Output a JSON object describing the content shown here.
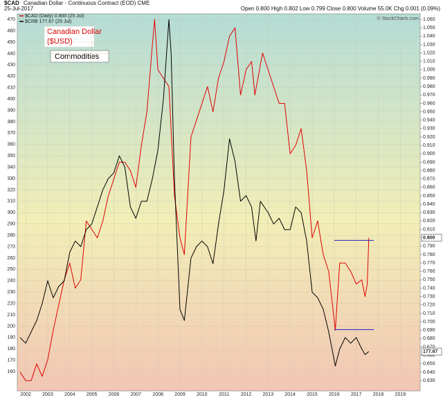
{
  "chart_data": {
    "type": "line",
    "symbol": "$CAD",
    "title": "Canadian Dollar - Continuous Contract (EOD) CME",
    "date": "25-Jul-2017",
    "quote": "Open 0.800  High 0.802  Low 0.799  Close 0.800  Volume 55.0K  Chg 0.001 (0.09%)",
    "credit": "© StockCharts.com",
    "annotations": [
      {
        "text": "Canadian Dollar\n($USD)",
        "color": "#e00000"
      },
      {
        "text": "Commodities",
        "color": "#000000"
      }
    ],
    "xlim": [
      2001.62,
      2019.9
    ],
    "xticks": [
      2002,
      2003,
      2004,
      2005,
      2006,
      2007,
      2008,
      2009,
      2010,
      2011,
      2012,
      2013,
      2014,
      2015,
      2016,
      2017,
      2018,
      2019
    ],
    "ylim": [
      143,
      475
    ],
    "yticks": [
      160,
      170,
      180,
      190,
      200,
      210,
      220,
      230,
      240,
      250,
      260,
      270,
      280,
      290,
      300,
      310,
      320,
      330,
      340,
      350,
      360,
      370,
      380,
      390,
      400,
      410,
      420,
      430,
      440,
      450,
      460,
      470
    ],
    "y2lim": [
      0.6177,
      1.0666
    ],
    "y2ticks": [
      {
        "value": 0.63,
        "label": "0.630"
      },
      {
        "value": 0.64,
        "label": "0.640"
      },
      {
        "value": 0.65,
        "label": "0.650"
      },
      {
        "value": 0.66,
        "label": "0.660"
      },
      {
        "value": 0.67,
        "label": "0.670"
      },
      {
        "value": 0.68,
        "label": "0.680"
      },
      {
        "value": 0.69,
        "label": "0.690"
      },
      {
        "value": 0.7,
        "label": "0.700"
      },
      {
        "value": 0.71,
        "label": "0.710"
      },
      {
        "value": 0.72,
        "label": "0.720"
      },
      {
        "value": 0.73,
        "label": "0.730"
      },
      {
        "value": 0.74,
        "label": "0.740"
      },
      {
        "value": 0.75,
        "label": "0.750"
      },
      {
        "value": 0.76,
        "label": "0.760"
      },
      {
        "value": 0.77,
        "label": "0.770"
      },
      {
        "value": 0.78,
        "label": "0.780"
      },
      {
        "value": 0.79,
        "label": "0.790"
      },
      {
        "value": 0.8,
        "label": "0.800"
      },
      {
        "value": 0.81,
        "label": "0.810"
      },
      {
        "value": 0.82,
        "label": "0.820"
      },
      {
        "value": 0.83,
        "label": "0.830"
      },
      {
        "value": 0.84,
        "label": "0.840"
      },
      {
        "value": 0.85,
        "label": "0.850"
      },
      {
        "value": 0.86,
        "label": "0.860"
      },
      {
        "value": 0.87,
        "label": "0.870"
      },
      {
        "value": 0.88,
        "label": "0.880"
      },
      {
        "value": 0.89,
        "label": "0.890"
      },
      {
        "value": 0.9,
        "label": "0.900"
      },
      {
        "value": 0.91,
        "label": "0.910"
      },
      {
        "value": 0.92,
        "label": "0.920"
      },
      {
        "value": 0.93,
        "label": "0.930"
      },
      {
        "value": 0.94,
        "label": "0.940"
      },
      {
        "value": 0.95,
        "label": "0.950"
      },
      {
        "value": 0.96,
        "label": "0.960"
      },
      {
        "value": 0.97,
        "label": "0.970"
      },
      {
        "value": 0.98,
        "label": "0.980"
      },
      {
        "value": 0.99,
        "label": "0.990"
      },
      {
        "value": 1.0,
        "label": "1.000"
      },
      {
        "value": 1.01,
        "label": "1.010"
      },
      {
        "value": 1.02,
        "label": "1.020"
      },
      {
        "value": 1.03,
        "label": "1.030"
      },
      {
        "value": 1.04,
        "label": "1.040"
      },
      {
        "value": 1.05,
        "label": "1.050"
      },
      {
        "value": 1.06,
        "label": "1.060"
      }
    ],
    "grid": true,
    "series": [
      {
        "name": "$CAD (Daily) 0.800 (25 Jul)",
        "color": "#e00000",
        "axis": "y2",
        "last_label": "0.800",
        "x": [
          2001.75,
          2002.0,
          2002.25,
          2002.5,
          2002.75,
          2003.0,
          2003.25,
          2003.5,
          2003.75,
          2004.0,
          2004.25,
          2004.5,
          2004.75,
          2005.0,
          2005.25,
          2005.5,
          2005.75,
          2006.0,
          2006.25,
          2006.5,
          2006.75,
          2007.0,
          2007.25,
          2007.5,
          2007.75,
          2007.85,
          2008.0,
          2008.25,
          2008.5,
          2008.75,
          2009.0,
          2009.2,
          2009.5,
          2009.75,
          2010.0,
          2010.25,
          2010.5,
          2010.75,
          2011.0,
          2011.25,
          2011.5,
          2011.75,
          2012.0,
          2012.25,
          2012.4,
          2012.75,
          2013.0,
          2013.25,
          2013.5,
          2013.75,
          2014.0,
          2014.25,
          2014.5,
          2014.75,
          2015.0,
          2015.25,
          2015.5,
          2015.75,
          2016.05,
          2016.25,
          2016.5,
          2016.75,
          2017.0,
          2017.25,
          2017.4,
          2017.5,
          2017.57
        ],
        "values": [
          0.64,
          0.63,
          0.63,
          0.65,
          0.635,
          0.655,
          0.69,
          0.72,
          0.75,
          0.77,
          0.74,
          0.75,
          0.82,
          0.81,
          0.8,
          0.82,
          0.85,
          0.87,
          0.89,
          0.89,
          0.88,
          0.86,
          0.91,
          0.95,
          1.03,
          1.06,
          1.0,
          0.99,
          0.98,
          0.85,
          0.8,
          0.78,
          0.92,
          0.94,
          0.96,
          0.98,
          0.95,
          0.99,
          1.01,
          1.04,
          1.05,
          0.97,
          1.0,
          1.01,
          0.97,
          1.02,
          1.0,
          0.98,
          0.96,
          0.96,
          0.9,
          0.91,
          0.93,
          0.88,
          0.8,
          0.82,
          0.78,
          0.76,
          0.69,
          0.77,
          0.77,
          0.76,
          0.745,
          0.75,
          0.73,
          0.745,
          0.8
        ]
      },
      {
        "name": "$CRB 177.67 (25 Jul)",
        "color": "#000000",
        "last_label": "177.67",
        "x": [
          2001.75,
          2002.0,
          2002.25,
          2002.5,
          2002.75,
          2003.0,
          2003.25,
          2003.5,
          2003.75,
          2004.0,
          2004.25,
          2004.5,
          2004.75,
          2005.0,
          2005.25,
          2005.5,
          2005.75,
          2006.0,
          2006.25,
          2006.5,
          2006.75,
          2007.0,
          2007.25,
          2007.5,
          2007.75,
          2008.0,
          2008.25,
          2008.5,
          2008.6,
          2008.75,
          2009.0,
          2009.2,
          2009.5,
          2009.75,
          2010.0,
          2010.25,
          2010.5,
          2010.75,
          2011.0,
          2011.25,
          2011.5,
          2011.75,
          2012.0,
          2012.25,
          2012.45,
          2012.65,
          2013.0,
          2013.25,
          2013.5,
          2013.75,
          2014.0,
          2014.25,
          2014.5,
          2014.75,
          2015.0,
          2015.25,
          2015.5,
          2015.75,
          2016.05,
          2016.25,
          2016.5,
          2016.75,
          2017.0,
          2017.25,
          2017.4,
          2017.57
        ],
        "values": [
          190,
          185,
          195,
          205,
          220,
          240,
          225,
          235,
          240,
          265,
          275,
          270,
          285,
          290,
          305,
          320,
          330,
          335,
          350,
          340,
          305,
          295,
          310,
          310,
          330,
          355,
          400,
          470,
          440,
          330,
          215,
          205,
          260,
          270,
          275,
          270,
          255,
          290,
          320,
          365,
          345,
          310,
          315,
          305,
          275,
          310,
          300,
          290,
          295,
          285,
          285,
          305,
          300,
          275,
          230,
          225,
          215,
          195,
          165,
          180,
          190,
          185,
          190,
          180,
          175,
          177.67
        ]
      }
    ],
    "hlines": [
      {
        "value": 0.797,
        "axis": "y2",
        "x": [
          2016.0,
          2017.8
        ],
        "color": "#2020c0"
      },
      {
        "value": 197,
        "x": [
          2016.0,
          2017.8
        ],
        "color": "#2020c0"
      }
    ]
  }
}
